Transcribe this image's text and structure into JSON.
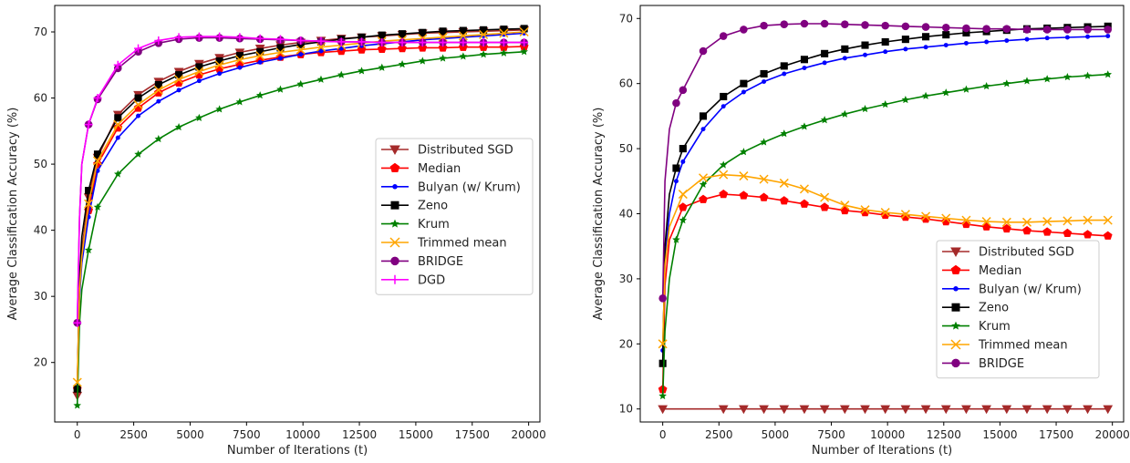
{
  "chart_data": [
    {
      "type": "line",
      "xlabel": "Number of Iterations (t)",
      "ylabel": "Average Classification Accuracy (%)",
      "xlim": [
        -1000,
        20500
      ],
      "ylim": [
        11,
        74
      ],
      "xticks": [
        0,
        2500,
        5000,
        7500,
        10000,
        12500,
        15000,
        17500,
        20000
      ],
      "yticks": [
        20,
        30,
        40,
        50,
        60,
        70
      ],
      "grid": false,
      "legend_position": "center-right",
      "series": [
        {
          "name": "Distributed SGD",
          "color": "#a52a2a",
          "marker": "triangle-down",
          "x": [
            0,
            100,
            200,
            500,
            900,
            1800,
            2700,
            3600,
            4500,
            5400,
            6300,
            7200,
            8100,
            9000,
            9900,
            10800,
            11700,
            12600,
            13500,
            14400,
            15300,
            16200,
            17100,
            18000,
            18900,
            19800
          ],
          "y": [
            15,
            31,
            37,
            45,
            51,
            57.5,
            60.5,
            62.5,
            64,
            65.2,
            66.1,
            66.9,
            67.5,
            68,
            68.4,
            68.7,
            69,
            69.2,
            69.4,
            69.6,
            69.8,
            69.9,
            70,
            70.1,
            70.2,
            70.3
          ]
        },
        {
          "name": "Median",
          "color": "#ff0000",
          "marker": "pentagon",
          "x": [
            0,
            100,
            200,
            500,
            900,
            1800,
            2700,
            3600,
            4500,
            5400,
            6300,
            7200,
            8100,
            9000,
            9900,
            10800,
            11700,
            12600,
            13500,
            14400,
            15300,
            16200,
            17100,
            18000,
            18900,
            19800
          ],
          "y": [
            16,
            31,
            36,
            43,
            50,
            55.5,
            58.5,
            60.8,
            62.3,
            63.5,
            64.4,
            65.1,
            65.7,
            66.2,
            66.6,
            66.9,
            67.1,
            67.3,
            67.4,
            67.5,
            67.6,
            67.6,
            67.7,
            67.7,
            67.7,
            67.8
          ]
        },
        {
          "name": "Bulyan (w/ Krum)",
          "color": "#0000ff",
          "marker": "dot",
          "x": [
            0,
            100,
            200,
            500,
            900,
            1800,
            2700,
            3600,
            4500,
            5400,
            6300,
            7200,
            8100,
            9000,
            9900,
            10800,
            11700,
            12600,
            13500,
            14400,
            15300,
            16200,
            17100,
            18000,
            18900,
            19800
          ],
          "y": [
            16,
            30,
            35,
            42,
            49,
            54,
            57.3,
            59.5,
            61.2,
            62.6,
            63.7,
            64.6,
            65.4,
            66,
            66.6,
            67.1,
            67.5,
            67.9,
            68.2,
            68.5,
            68.8,
            69,
            69.2,
            69.4,
            69.6,
            69.8
          ]
        },
        {
          "name": "Zeno",
          "color": "#000000",
          "marker": "square",
          "x": [
            0,
            100,
            200,
            500,
            900,
            1800,
            2700,
            3600,
            4500,
            5400,
            6300,
            7200,
            8100,
            9000,
            9900,
            10800,
            11700,
            12600,
            13500,
            14400,
            15300,
            16200,
            17100,
            18000,
            18900,
            19800
          ],
          "y": [
            16,
            33,
            39,
            46,
            51.5,
            57,
            60,
            62,
            63.5,
            64.7,
            65.6,
            66.4,
            67,
            67.6,
            68.1,
            68.5,
            68.9,
            69.2,
            69.5,
            69.7,
            69.9,
            70.1,
            70.2,
            70.3,
            70.4,
            70.5
          ]
        },
        {
          "name": "Krum",
          "color": "#008000",
          "marker": "star",
          "x": [
            0,
            100,
            200,
            500,
            900,
            1800,
            2700,
            3600,
            4500,
            5400,
            6300,
            7200,
            8100,
            9000,
            9900,
            10800,
            11700,
            12600,
            13500,
            14400,
            15300,
            16200,
            17100,
            18000,
            18900,
            19800
          ],
          "y": [
            13.5,
            26,
            31,
            37,
            43.5,
            48.5,
            51.5,
            53.8,
            55.6,
            57,
            58.3,
            59.4,
            60.4,
            61.3,
            62.1,
            62.8,
            63.5,
            64.1,
            64.6,
            65.1,
            65.6,
            66,
            66.3,
            66.6,
            66.8,
            67
          ]
        },
        {
          "name": "Trimmed mean",
          "color": "#ffa500",
          "marker": "x",
          "x": [
            0,
            100,
            200,
            500,
            900,
            1800,
            2700,
            3600,
            4500,
            5400,
            6300,
            7200,
            8100,
            9000,
            9900,
            10800,
            11700,
            12600,
            13500,
            14400,
            15300,
            16200,
            17100,
            18000,
            18900,
            19800
          ],
          "y": [
            17,
            31,
            36,
            44,
            50.5,
            56,
            59,
            61.2,
            62.8,
            64,
            65,
            65.8,
            66.4,
            66.9,
            67.3,
            67.7,
            68,
            68.3,
            68.6,
            68.8,
            69,
            69.2,
            69.4,
            69.6,
            69.8,
            70
          ]
        },
        {
          "name": "BRIDGE",
          "color": "#800080",
          "marker": "circle",
          "x": [
            0,
            100,
            200,
            500,
            900,
            1800,
            2700,
            3600,
            4500,
            5400,
            6300,
            7200,
            8100,
            9000,
            9900,
            10800,
            11700,
            12600,
            13500,
            14400,
            15300,
            16200,
            17100,
            18000,
            18900,
            19800
          ],
          "y": [
            26,
            42,
            50,
            56,
            59.8,
            64.5,
            67,
            68.3,
            68.9,
            69.1,
            69.1,
            69,
            68.9,
            68.8,
            68.7,
            68.6,
            68.5,
            68.5,
            68.4,
            68.4,
            68.4,
            68.4,
            68.4,
            68.4,
            68.4,
            68.4
          ]
        },
        {
          "name": "DGD",
          "color": "#ff00ff",
          "marker": "plus",
          "x": [
            0,
            100,
            200,
            500,
            900,
            1800,
            2700,
            3600,
            4500,
            5400,
            6300,
            7200,
            8100,
            9000,
            9900,
            10800,
            11700,
            12600,
            13500,
            14400,
            15300,
            16200,
            17100,
            18000,
            18900,
            19800
          ],
          "y": [
            26,
            42,
            50,
            56,
            60,
            65,
            67.5,
            68.7,
            69.2,
            69.3,
            69.3,
            69.2,
            69,
            68.9,
            68.7,
            68.6,
            68.5,
            68.5,
            68.4,
            68.4,
            68.4,
            68.4,
            68.4,
            68.4,
            68.4,
            68.4
          ]
        }
      ]
    },
    {
      "type": "line",
      "xlabel": "Number of Iterations (t)",
      "ylabel": "Average Classification Accuracy (%)",
      "xlim": [
        -1000,
        20500
      ],
      "ylim": [
        8,
        72
      ],
      "xticks": [
        0,
        2500,
        5000,
        7500,
        10000,
        12500,
        15000,
        17500,
        20000
      ],
      "yticks": [
        10,
        20,
        30,
        40,
        50,
        60,
        70
      ],
      "grid": false,
      "legend_position": "lower-right",
      "series": [
        {
          "name": "Distributed SGD",
          "color": "#a52a2a",
          "marker": "triangle-down",
          "x": [
            0,
            900,
            1800,
            2700,
            3600,
            4500,
            5400,
            6300,
            7200,
            8100,
            9000,
            9900,
            10800,
            11700,
            12600,
            13500,
            14400,
            15300,
            16200,
            17100,
            18000,
            18900,
            19800
          ],
          "y": [
            10,
            10,
            10,
            10,
            10,
            10,
            10,
            10,
            10,
            10,
            10,
            10,
            10,
            10,
            10,
            10,
            10,
            10,
            10,
            10,
            10,
            10,
            10
          ]
        },
        {
          "name": "Median",
          "color": "#ff0000",
          "marker": "pentagon",
          "x": [
            0,
            100,
            300,
            900,
            1800,
            2700,
            3600,
            4500,
            5400,
            6300,
            7200,
            8100,
            9000,
            9900,
            10800,
            11700,
            12600,
            13500,
            14400,
            15300,
            16200,
            17100,
            18000,
            18900,
            19800
          ],
          "y": [
            13,
            29,
            36,
            41,
            42.2,
            43,
            42.8,
            42.5,
            42,
            41.5,
            41,
            40.5,
            40.2,
            39.8,
            39.5,
            39.2,
            38.8,
            38.4,
            38,
            37.7,
            37.4,
            37.2,
            37,
            36.8,
            36.6
          ]
        },
        {
          "name": "Bulyan (w/ Krum)",
          "color": "#0000ff",
          "marker": "dot",
          "x": [
            0,
            100,
            300,
            600,
            900,
            1800,
            2700,
            3600,
            4500,
            5400,
            6300,
            7200,
            8100,
            9000,
            9900,
            10800,
            11700,
            12600,
            13500,
            14400,
            15300,
            16200,
            17100,
            18000,
            18900,
            19800
          ],
          "y": [
            19,
            33,
            40,
            45,
            48,
            53,
            56.5,
            58.7,
            60.3,
            61.5,
            62.4,
            63.2,
            63.9,
            64.4,
            64.9,
            65.3,
            65.6,
            65.9,
            66.2,
            66.4,
            66.6,
            66.8,
            67,
            67.1,
            67.2,
            67.3
          ]
        },
        {
          "name": "Zeno",
          "color": "#000000",
          "marker": "square",
          "x": [
            0,
            100,
            300,
            600,
            900,
            1800,
            2700,
            3600,
            4500,
            5400,
            6300,
            7200,
            8100,
            9000,
            9900,
            10800,
            11700,
            12600,
            13500,
            14400,
            15300,
            16200,
            17100,
            18000,
            18900,
            19800
          ],
          "y": [
            17,
            35,
            43,
            47,
            50,
            55,
            58,
            60,
            61.5,
            62.7,
            63.7,
            64.6,
            65.3,
            65.9,
            66.4,
            66.8,
            67.2,
            67.5,
            67.8,
            68,
            68.2,
            68.4,
            68.5,
            68.6,
            68.7,
            68.8
          ]
        },
        {
          "name": "Krum",
          "color": "#008000",
          "marker": "star",
          "x": [
            0,
            100,
            300,
            600,
            900,
            1800,
            2700,
            3600,
            4500,
            5400,
            6300,
            7200,
            8100,
            9000,
            9900,
            10800,
            11700,
            12600,
            13500,
            14400,
            15300,
            16200,
            17100,
            18000,
            18900,
            19800
          ],
          "y": [
            12,
            22,
            30,
            36,
            39,
            44.5,
            47.5,
            49.5,
            51,
            52.3,
            53.4,
            54.4,
            55.3,
            56.1,
            56.8,
            57.5,
            58.1,
            58.6,
            59.1,
            59.6,
            60,
            60.4,
            60.7,
            61,
            61.2,
            61.4
          ]
        },
        {
          "name": "Trimmed mean",
          "color": "#ffa500",
          "marker": "x",
          "x": [
            0,
            100,
            300,
            900,
            1800,
            2700,
            3600,
            4500,
            5400,
            6300,
            7200,
            8100,
            9000,
            9900,
            10800,
            11700,
            12600,
            13500,
            14400,
            15300,
            16200,
            17100,
            18000,
            18900,
            19800
          ],
          "y": [
            20,
            32,
            38,
            43,
            45.5,
            46,
            45.8,
            45.3,
            44.7,
            43.8,
            42.5,
            41.3,
            40.6,
            40.2,
            39.9,
            39.6,
            39.3,
            39,
            38.8,
            38.7,
            38.7,
            38.8,
            38.9,
            39,
            39
          ]
        },
        {
          "name": "BRIDGE",
          "color": "#800080",
          "marker": "circle",
          "x": [
            0,
            100,
            300,
            600,
            900,
            1800,
            2700,
            3600,
            4500,
            5400,
            6300,
            7200,
            8100,
            9000,
            9900,
            10800,
            11700,
            12600,
            13500,
            14400,
            15300,
            16200,
            17100,
            18000,
            18900,
            19800
          ],
          "y": [
            27,
            45,
            53,
            57,
            59,
            65,
            67.3,
            68.3,
            68.9,
            69.1,
            69.2,
            69.2,
            69.1,
            69,
            68.9,
            68.8,
            68.7,
            68.6,
            68.5,
            68.4,
            68.4,
            68.3,
            68.3,
            68.3,
            68.3,
            68.3
          ]
        }
      ]
    }
  ]
}
